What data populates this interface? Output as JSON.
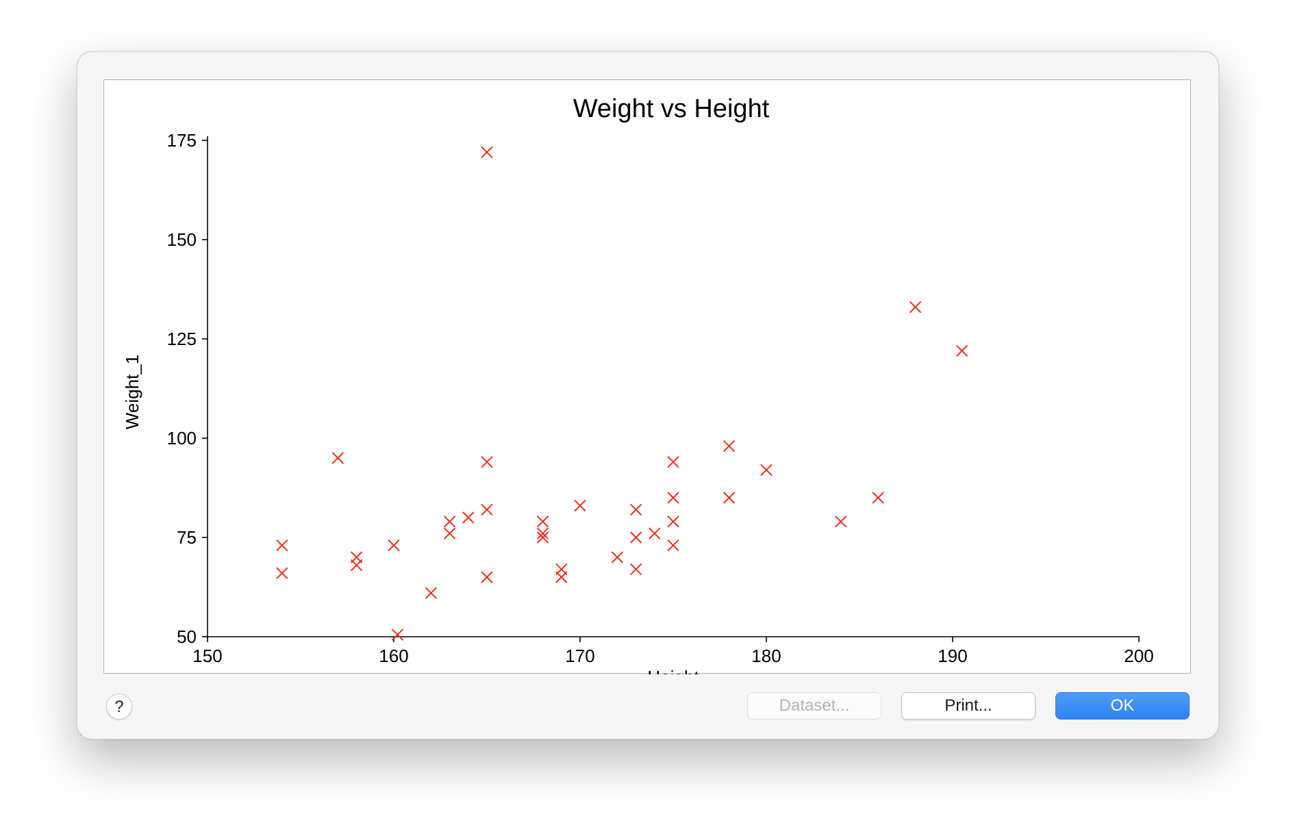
{
  "dialog": {
    "buttons": {
      "help_label": "?",
      "dataset_label": "Dataset...",
      "print_label": "Print...",
      "ok_label": "OK"
    }
  },
  "chart_data": {
    "type": "scatter",
    "title": "Weight vs Height",
    "xlabel": "Height",
    "ylabel": "Weight_1",
    "xlim": [
      150,
      200
    ],
    "ylim": [
      50,
      175
    ],
    "xticks": [
      150,
      160,
      170,
      180,
      190,
      200
    ],
    "yticks": [
      50,
      75,
      100,
      125,
      150,
      175
    ],
    "marker": "x",
    "marker_color": "#e8321e",
    "grid": false,
    "series": [
      {
        "points": [
          [
            154,
            73
          ],
          [
            154,
            66
          ],
          [
            157,
            95
          ],
          [
            158,
            70
          ],
          [
            158,
            68
          ],
          [
            160,
            73
          ],
          [
            160.2,
            50.5
          ],
          [
            162,
            61
          ],
          [
            163,
            79
          ],
          [
            163,
            76
          ],
          [
            164,
            80
          ],
          [
            165,
            172
          ],
          [
            165,
            94
          ],
          [
            165,
            82
          ],
          [
            165,
            65
          ],
          [
            168,
            79
          ],
          [
            168,
            76
          ],
          [
            168,
            75
          ],
          [
            169,
            67
          ],
          [
            169,
            65
          ],
          [
            170,
            83
          ],
          [
            172,
            70
          ],
          [
            173,
            82
          ],
          [
            173,
            75
          ],
          [
            173,
            67
          ],
          [
            174,
            76
          ],
          [
            175,
            94
          ],
          [
            175,
            85
          ],
          [
            175,
            79
          ],
          [
            175,
            73
          ],
          [
            178,
            98
          ],
          [
            178,
            85
          ],
          [
            180,
            92
          ],
          [
            184,
            79
          ],
          [
            186,
            85
          ],
          [
            188,
            133
          ],
          [
            190.5,
            122
          ]
        ]
      }
    ]
  }
}
